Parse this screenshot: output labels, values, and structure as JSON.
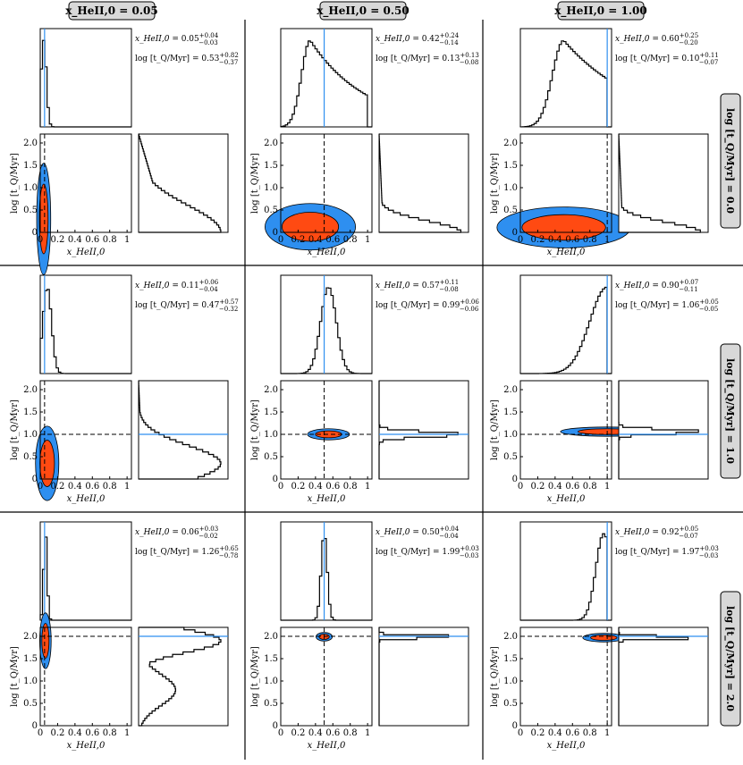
{
  "column_headers": [
    "x_HeII,0 = 0.05",
    "x_HeII,0 = 0.50",
    "x_HeII,0 = 1.00"
  ],
  "row_headers": [
    "log [t_Q/Myr] = 0.0",
    "log [t_Q/Myr] = 1.0",
    "log [t_Q/Myr] = 2.0"
  ],
  "axes": {
    "xlabel": "x_HeII,0",
    "ylabel": "log [t_Q/Myr]",
    "xlim": [
      0,
      1.05
    ],
    "ylim": [
      0,
      2.2
    ],
    "xticks": [
      "0",
      "0.2",
      "0.4",
      "0.6",
      "0.8",
      "1"
    ],
    "yticks": [
      "0",
      "0.5",
      "1.0",
      "1.5",
      "2.0"
    ]
  },
  "colors": {
    "contour_inner": "#ff4a12",
    "contour_outer": "#2e8ff0",
    "truth_line": "#2e8ff0",
    "header_fill": "#d8d8d8"
  },
  "chart_data": [
    {
      "type": "corner",
      "row": 0,
      "col": 0,
      "true_x": 0.05,
      "true_logt": 0.0,
      "x_label": "x_HeII,0",
      "x_med": "0.05",
      "x_plus": "+0.04",
      "x_minus": "−0.03",
      "t_label": "log [t_Q/Myr]",
      "t_med": "0.53",
      "t_plus": "+0.82",
      "t_minus": "−0.37",
      "x_peak": 0.04,
      "x_width": 0.03,
      "x_tail": 0.0,
      "t_peak": 0.0,
      "t_width": 0.6,
      "t_floor": 0.35
    },
    {
      "type": "corner",
      "row": 0,
      "col": 1,
      "true_x": 0.5,
      "true_logt": 0.0,
      "x_label": "x_HeII,0",
      "x_med": "0.42",
      "x_plus": "+0.24",
      "x_minus": "−0.14",
      "t_label": "log [t_Q/Myr]",
      "t_med": "0.13",
      "t_plus": "+0.13",
      "t_minus": "−0.08",
      "x_peak": 0.34,
      "x_width": 0.1,
      "x_tail": 0.3,
      "t_peak": 0.0,
      "t_width": 0.25,
      "t_floor": 0.05
    },
    {
      "type": "corner",
      "row": 0,
      "col": 2,
      "true_x": 1.0,
      "true_logt": 0.0,
      "x_label": "x_HeII,0",
      "x_med": "0.60",
      "x_plus": "+0.25",
      "x_minus": "−0.20",
      "t_label": "log [t_Q/Myr]",
      "t_med": "0.10",
      "t_plus": "+0.11",
      "t_minus": "−0.07",
      "x_peak": 0.5,
      "x_width": 0.13,
      "x_tail": 0.5,
      "t_peak": 0.0,
      "t_width": 0.22,
      "t_floor": 0.05
    },
    {
      "type": "corner",
      "row": 1,
      "col": 0,
      "true_x": 0.05,
      "true_logt": 1.0,
      "x_label": "x_HeII,0",
      "x_med": "0.11",
      "x_plus": "+0.06",
      "x_minus": "−0.04",
      "t_label": "log [t_Q/Myr]",
      "t_med": "0.47",
      "t_plus": "+0.57",
      "t_minus": "−0.32",
      "x_peak": 0.08,
      "x_width": 0.05,
      "x_tail": 0.0,
      "t_peak": 0.35,
      "t_width": 0.4,
      "t_floor": 0.05
    },
    {
      "type": "corner",
      "row": 1,
      "col": 1,
      "true_x": 0.5,
      "true_logt": 1.0,
      "x_label": "x_HeII,0",
      "x_med": "0.57",
      "x_plus": "+0.11",
      "x_minus": "−0.08",
      "t_label": "log [t_Q/Myr]",
      "t_med": "0.99",
      "t_plus": "+0.06",
      "t_minus": "−0.06",
      "x_peak": 0.55,
      "x_width": 0.09,
      "x_tail": 0.0,
      "t_peak": 1.0,
      "t_width": 0.06,
      "t_floor": 0.0
    },
    {
      "type": "corner",
      "row": 1,
      "col": 2,
      "true_x": 1.0,
      "true_logt": 1.0,
      "x_label": "x_HeII,0",
      "x_med": "0.90",
      "x_plus": "+0.07",
      "x_minus": "−0.11",
      "t_label": "log [t_Q/Myr]",
      "t_med": "1.06",
      "t_plus": "+0.05",
      "t_minus": "−0.05",
      "x_peak": 1.0,
      "x_width": 0.2,
      "x_tail": 0.0,
      "t_peak": 1.06,
      "t_width": 0.05,
      "t_floor": 0.0
    },
    {
      "type": "corner",
      "row": 2,
      "col": 0,
      "true_x": 0.05,
      "true_logt": 2.0,
      "x_label": "x_HeII,0",
      "x_med": "0.06",
      "x_plus": "+0.03",
      "x_minus": "−0.02",
      "t_label": "log [t_Q/Myr]",
      "t_med": "1.26",
      "t_plus": "+0.65",
      "t_minus": "−0.78",
      "x_peak": 0.06,
      "x_width": 0.02,
      "x_tail": 0.0,
      "t_peak": 1.9,
      "t_width": 0.3,
      "t_floor": 0.0
    },
    {
      "type": "corner",
      "row": 2,
      "col": 1,
      "true_x": 0.5,
      "true_logt": 2.0,
      "x_label": "x_HeII,0",
      "x_med": "0.50",
      "x_plus": "+0.04",
      "x_minus": "−0.04",
      "t_label": "log [t_Q/Myr]",
      "t_med": "1.99",
      "t_plus": "+0.03",
      "t_minus": "−0.03",
      "x_peak": 0.5,
      "x_width": 0.035,
      "x_tail": 0.0,
      "t_peak": 1.99,
      "t_width": 0.03,
      "t_floor": 0.0
    },
    {
      "type": "corner",
      "row": 2,
      "col": 2,
      "true_x": 1.0,
      "true_logt": 2.0,
      "x_label": "x_HeII,0",
      "x_med": "0.92",
      "x_plus": "+0.05",
      "x_minus": "−0.07",
      "t_label": "log [t_Q/Myr]",
      "t_med": "1.97",
      "t_plus": "+0.03",
      "t_minus": "−0.03",
      "x_peak": 0.96,
      "x_width": 0.09,
      "x_tail": 0.0,
      "t_peak": 1.97,
      "t_width": 0.03,
      "t_floor": 0.0
    }
  ]
}
